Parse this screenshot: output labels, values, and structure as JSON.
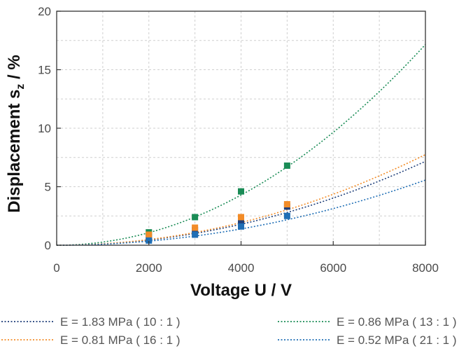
{
  "chart_data": {
    "type": "scatter",
    "xlabel": "Voltage U / V",
    "ylabel_main": "Displacement s",
    "ylabel_sub": "z",
    "ylabel_unit": " / %",
    "xlim": [
      0,
      8000
    ],
    "ylim": [
      0,
      20
    ],
    "xticks": [
      0,
      2000,
      4000,
      6000,
      8000
    ],
    "yticks": [
      0,
      5,
      10,
      15,
      20
    ],
    "grid": true,
    "legend_position": "bottom",
    "series": [
      {
        "name": "E = 1.83 MPa ( 10 : 1 )",
        "color": "#1f3f7a",
        "x": [
          2000,
          3000,
          4000,
          5000
        ],
        "y": [
          0.7,
          1.3,
          2.1,
          3.3
        ],
        "fit_coefficient": 1.12e-07,
        "legend_slot": "left-1"
      },
      {
        "name": "E = 0.86 MPa ( 13 : 1 )",
        "color": "#1a8c56",
        "x": [
          2000,
          3000,
          4000,
          5000
        ],
        "y": [
          1.1,
          2.4,
          4.6,
          6.8
        ],
        "fit_coefficient": 2.68e-07,
        "legend_slot": "right-1"
      },
      {
        "name": "E = 0.81 MPa ( 16 : 1 )",
        "color": "#f28c28",
        "x": [
          2000,
          3000,
          4000,
          5000
        ],
        "y": [
          0.9,
          1.5,
          2.4,
          3.5
        ],
        "fit_coefficient": 1.21e-07,
        "legend_slot": "left-2"
      },
      {
        "name": "E = 0.52 MPa ( 21 : 1 )",
        "color": "#1f6eb5",
        "x": [
          2000,
          3000,
          4000,
          5000
        ],
        "y": [
          0.4,
          0.9,
          1.6,
          2.5
        ],
        "fit_coefficient": 8.7e-08,
        "legend_slot": "right-2"
      }
    ]
  }
}
